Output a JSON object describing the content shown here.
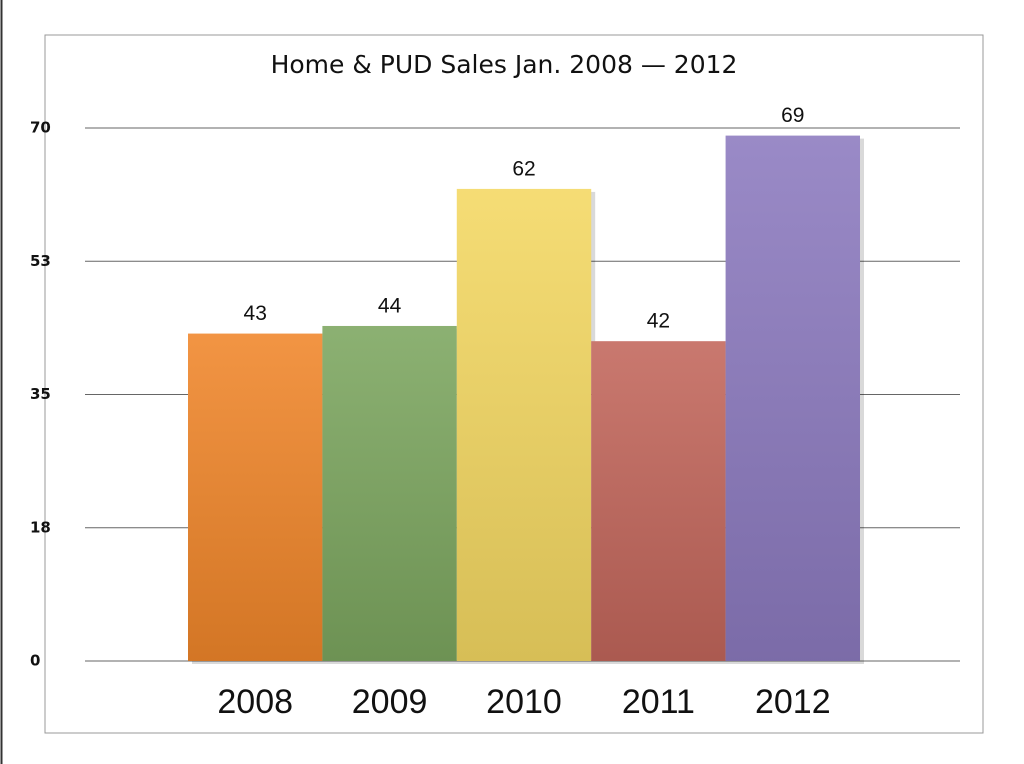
{
  "chart_data": {
    "type": "bar",
    "title": "Home & PUD Sales Jan. 2008 — 2012",
    "categories": [
      "2008",
      "2009",
      "2010",
      "2011",
      "2012"
    ],
    "values": [
      43,
      44,
      62,
      42,
      69
    ],
    "colors": [
      "#f0862a",
      "#7ca65f",
      "#f4d862",
      "#c2665b",
      "#8c7abf"
    ],
    "ylim": [
      0,
      70
    ],
    "yticks": [
      0,
      {
        "value": 17.5,
        "label": "18"
      },
      35,
      {
        "value": 52.5,
        "label": "53"
      },
      70
    ],
    "grid": true
  }
}
